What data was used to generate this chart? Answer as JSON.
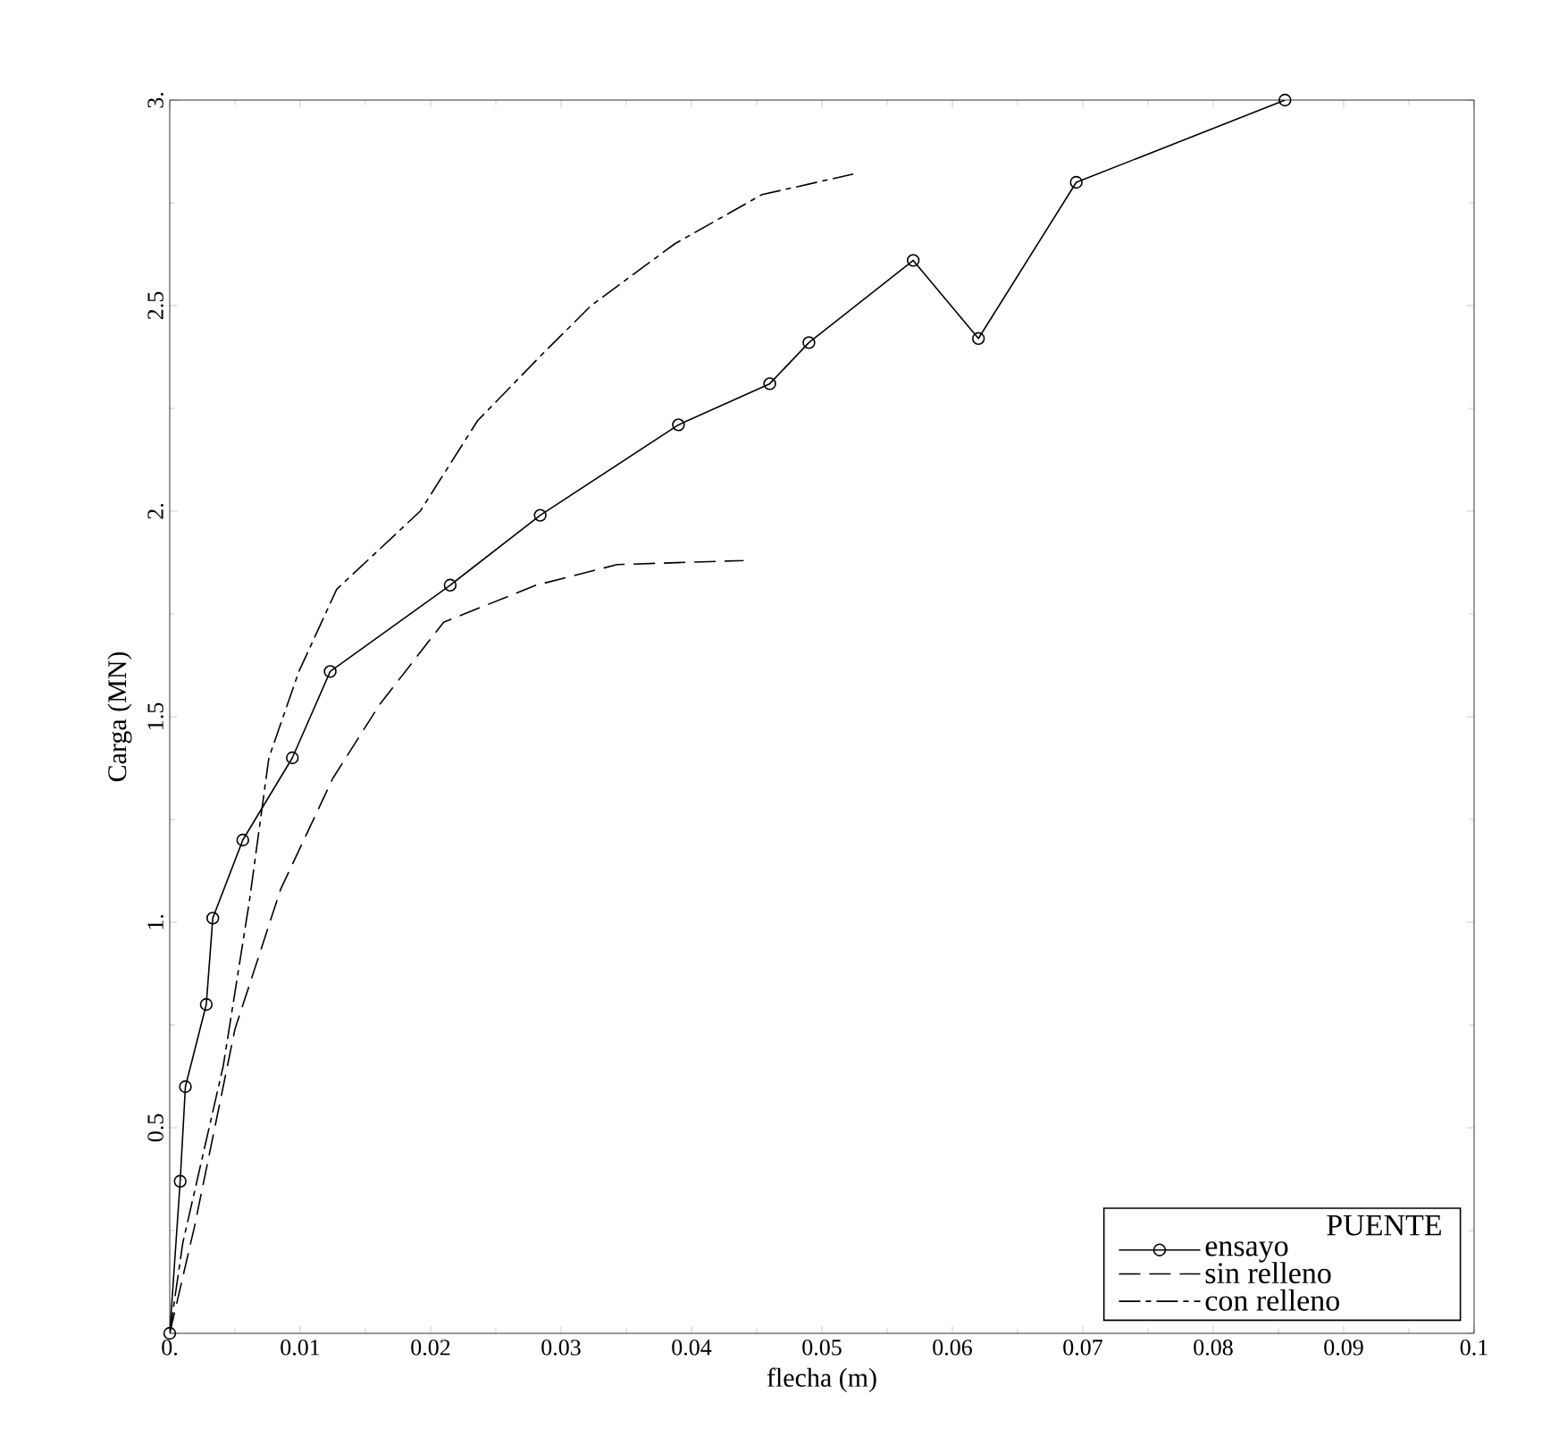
{
  "chart_data": {
    "type": "line",
    "xlabel": "flecha (m)",
    "ylabel": "Carga (MN)",
    "legend_title": "PUENTE",
    "legend": "bottom right",
    "grid": false,
    "xlim": [
      0,
      0.1
    ],
    "ylim": [
      0,
      3
    ],
    "xticks": [
      {
        "value": 0,
        "label": "0."
      },
      0.01,
      0.02,
      0.03,
      0.04,
      0.05,
      0.06,
      0.07,
      0.08,
      0.09,
      0.1
    ],
    "yticks": [
      {
        "value": 0,
        "label": null
      },
      0.5,
      {
        "value": 1,
        "label": "1."
      },
      1.5,
      {
        "value": 2,
        "label": "2."
      },
      2.5,
      {
        "value": 3,
        "label": "3."
      }
    ],
    "series": [
      {
        "name": "ensayo",
        "color": "#000000",
        "marker": "circle",
        "line_style": "solid",
        "x": [
          0,
          0.0008,
          0.0012,
          0.0028,
          0.0033,
          0.0056,
          0.0094,
          0.0123,
          0.0215,
          0.0284,
          0.039,
          0.046,
          0.049,
          0.057,
          0.062,
          0.0695,
          0.0855
        ],
        "values": [
          0,
          0.37,
          0.6,
          0.8,
          1.01,
          1.2,
          1.4,
          1.61,
          1.82,
          1.99,
          2.21,
          2.31,
          2.41,
          2.61,
          2.42,
          2.8,
          3.0
        ]
      },
      {
        "name": "sin relleno",
        "color": "#000000",
        "marker": "none",
        "line_style": "dashed",
        "x": [
          0,
          0.0019,
          0.005,
          0.0085,
          0.0125,
          0.0161,
          0.021,
          0.0281,
          0.0343,
          0.044
        ],
        "values": [
          0,
          0.26,
          0.74,
          1.08,
          1.35,
          1.53,
          1.73,
          1.82,
          1.87,
          1.88
        ]
      },
      {
        "name": "con relleno",
        "color": "#000000",
        "marker": "none",
        "line_style": "dashdot",
        "x": [
          0,
          0.001,
          0.0041,
          0.0061,
          0.0076,
          0.0099,
          0.0128,
          0.0192,
          0.0236,
          0.0285,
          0.0323,
          0.0387,
          0.0454,
          0.0524
        ],
        "values": [
          0,
          0.22,
          0.65,
          1.05,
          1.4,
          1.61,
          1.81,
          2.0,
          2.22,
          2.38,
          2.5,
          2.65,
          2.77,
          2.82
        ]
      }
    ]
  }
}
